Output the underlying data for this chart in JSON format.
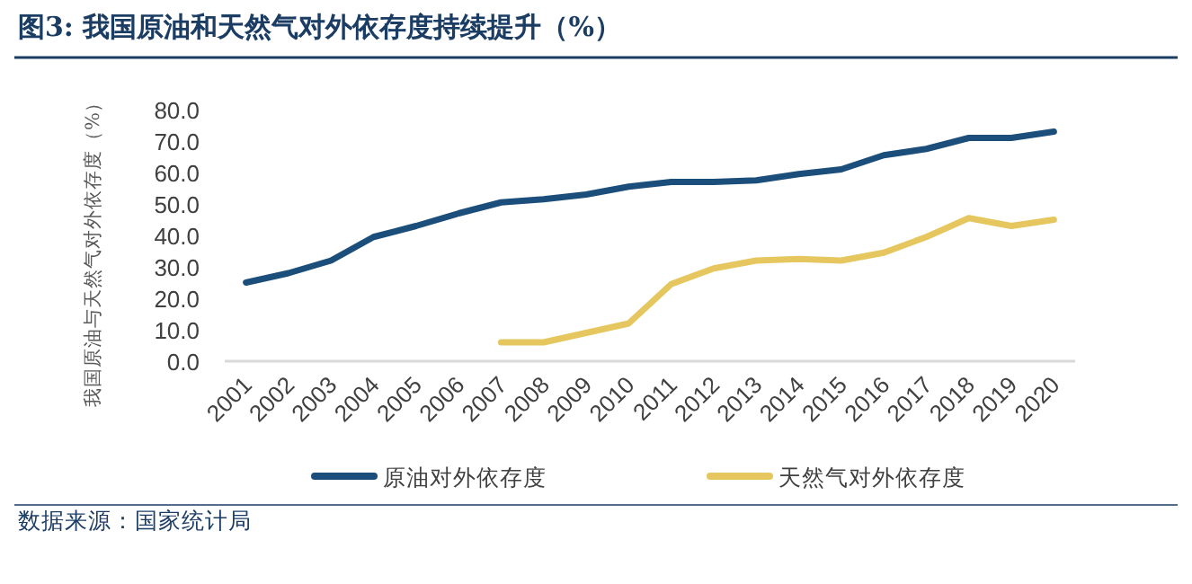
{
  "chart_data": {
    "type": "line",
    "title": "图3:  我国原油和天然气对外依存度持续提升（%）",
    "ylabel": "我国原油与天然气对外依存度（%）",
    "categories": [
      "2001",
      "2002",
      "2003",
      "2004",
      "2005",
      "2006",
      "2007",
      "2008",
      "2009",
      "2010",
      "2011",
      "2012",
      "2013",
      "2014",
      "2015",
      "2016",
      "2017",
      "2018",
      "2019",
      "2020"
    ],
    "series": [
      {
        "name": "原油对外依存度",
        "color": "#1b4e7a",
        "values": [
          25,
          28,
          32,
          39.5,
          43,
          47,
          50.5,
          51.5,
          53,
          55.5,
          57,
          57,
          57.5,
          59.5,
          61,
          65.5,
          67.5,
          71,
          71,
          73
        ]
      },
      {
        "name": "天然气对外依存度",
        "color": "#e6c75f",
        "values": [
          null,
          null,
          null,
          null,
          null,
          null,
          6,
          6,
          9,
          12,
          24.5,
          29.5,
          32,
          32.5,
          32,
          34.5,
          39.5,
          45.5,
          43,
          45
        ]
      }
    ],
    "ylim": [
      0,
      80
    ],
    "yticks": [
      {
        "value": 0,
        "label": "0.0"
      },
      {
        "value": 10,
        "label": "10.0"
      },
      {
        "value": 20,
        "label": "20.0"
      },
      {
        "value": 30,
        "label": "30.0"
      },
      {
        "value": 40,
        "label": "40.0"
      },
      {
        "value": 50,
        "label": "50.0"
      },
      {
        "value": 60,
        "label": "60.0"
      },
      {
        "value": 70,
        "label": "70.0"
      },
      {
        "value": 80,
        "label": "80.0"
      }
    ],
    "grid": false,
    "legend": "bottom",
    "marker": "none",
    "line_style": "solid",
    "annotations": [
      "数据来源：国家统计局"
    ]
  }
}
